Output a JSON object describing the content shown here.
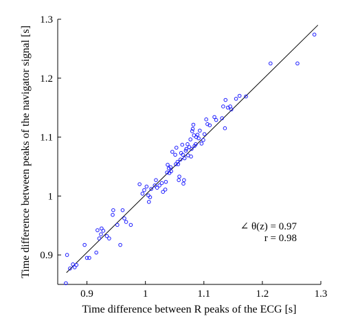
{
  "chart_data": {
    "type": "scatter",
    "title": "",
    "xlabel": "Time difference between R peaks of the ECG [s]",
    "ylabel": "Time difference between peaks of the navigator signal [s]",
    "xlim": [
      0.85,
      1.3
    ],
    "ylim": [
      0.85,
      1.3
    ],
    "x_ticks": [
      0.9,
      1,
      1.1,
      1.2,
      1.3
    ],
    "x_tick_labels": [
      "0.9",
      "1",
      "1.1",
      "1.2",
      "1.3"
    ],
    "y_ticks": [
      0.9,
      1,
      1.1,
      1.2,
      1.3
    ],
    "y_tick_labels": [
      "0.9",
      "1",
      "1.1",
      "1.2",
      "1.3"
    ],
    "grid": false,
    "legend": "none",
    "annotations": [
      "∠ θ(z) = 0.97",
      "r = 0.98"
    ],
    "colors": {
      "marker": "#1a1aff",
      "line": "#000000",
      "axis": "#000000"
    },
    "fit_line": {
      "x": [
        0.865,
        1.295
      ],
      "y": [
        0.87,
        1.29
      ]
    },
    "series": [
      {
        "marker": "circle",
        "points": [
          [
            0.864,
            0.852
          ],
          [
            0.866,
            0.9
          ],
          [
            0.871,
            0.877
          ],
          [
            0.876,
            0.884
          ],
          [
            0.879,
            0.879
          ],
          [
            0.882,
            0.883
          ],
          [
            0.896,
            0.917
          ],
          [
            0.9,
            0.895
          ],
          [
            0.904,
            0.895
          ],
          [
            0.916,
            0.904
          ],
          [
            0.918,
            0.942
          ],
          [
            0.921,
            0.928
          ],
          [
            0.924,
            0.935
          ],
          [
            0.925,
            0.945
          ],
          [
            0.928,
            0.941
          ],
          [
            0.934,
            0.932
          ],
          [
            0.938,
            0.928
          ],
          [
            0.944,
            0.968
          ],
          [
            0.945,
            0.976
          ],
          [
            0.952,
            0.951
          ],
          [
            0.957,
            0.917
          ],
          [
            0.961,
            0.976
          ],
          [
            0.964,
            0.962
          ],
          [
            0.967,
            0.956
          ],
          [
            0.975,
            0.951
          ],
          [
            0.99,
            1.02
          ],
          [
            0.995,
            1.004
          ],
          [
            0.998,
            1.01
          ],
          [
            1.002,
            1.016
          ],
          [
            1.005,
            1.001
          ],
          [
            1.006,
            0.99
          ],
          [
            1.008,
            0.998
          ],
          [
            1.01,
            1.012
          ],
          [
            1.016,
            1.018
          ],
          [
            1.018,
            1.027
          ],
          [
            1.02,
            1.014
          ],
          [
            1.024,
            1.018
          ],
          [
            1.028,
            1.022
          ],
          [
            1.03,
            1.007
          ],
          [
            1.034,
            1.011
          ],
          [
            1.035,
            1.024
          ],
          [
            1.037,
            1.04
          ],
          [
            1.038,
            1.053
          ],
          [
            1.04,
            1.047
          ],
          [
            1.041,
            1.039
          ],
          [
            1.043,
            1.049
          ],
          [
            1.044,
            1.042
          ],
          [
            1.046,
            1.075
          ],
          [
            1.051,
            1.07
          ],
          [
            1.052,
            1.054
          ],
          [
            1.053,
            1.082
          ],
          [
            1.055,
            1.058
          ],
          [
            1.056,
            1.054
          ],
          [
            1.057,
            1.027
          ],
          [
            1.058,
            1.033
          ],
          [
            1.06,
            1.062
          ],
          [
            1.061,
            1.073
          ],
          [
            1.063,
            1.087
          ],
          [
            1.064,
            1.07
          ],
          [
            1.065,
            1.021
          ],
          [
            1.066,
            1.027
          ],
          [
            1.067,
            1.064
          ],
          [
            1.069,
            1.077
          ],
          [
            1.07,
            1.08
          ],
          [
            1.072,
            1.088
          ],
          [
            1.073,
            1.069
          ],
          [
            1.075,
            1.083
          ],
          [
            1.077,
            1.096
          ],
          [
            1.078,
            1.067
          ],
          [
            1.079,
            1.08
          ],
          [
            1.08,
            1.11
          ],
          [
            1.081,
            1.114
          ],
          [
            1.082,
            1.121
          ],
          [
            1.083,
            1.103
          ],
          [
            1.084,
            1.085
          ],
          [
            1.086,
            1.088
          ],
          [
            1.087,
            1.1
          ],
          [
            1.089,
            1.104
          ],
          [
            1.091,
            1.098
          ],
          [
            1.093,
            1.111
          ],
          [
            1.096,
            1.089
          ],
          [
            1.099,
            1.095
          ],
          [
            1.101,
            1.105
          ],
          [
            1.104,
            1.13
          ],
          [
            1.106,
            1.122
          ],
          [
            1.11,
            1.12
          ],
          [
            1.118,
            1.134
          ],
          [
            1.121,
            1.129
          ],
          [
            1.131,
            1.132
          ],
          [
            1.133,
            1.152
          ],
          [
            1.136,
            1.115
          ],
          [
            1.137,
            1.163
          ],
          [
            1.141,
            1.15
          ],
          [
            1.145,
            1.152
          ],
          [
            1.147,
            1.147
          ],
          [
            1.155,
            1.165
          ],
          [
            1.161,
            1.17
          ],
          [
            1.172,
            1.169
          ],
          [
            1.214,
            1.225
          ],
          [
            1.26,
            1.225
          ],
          [
            1.289,
            1.274
          ]
        ]
      }
    ]
  }
}
